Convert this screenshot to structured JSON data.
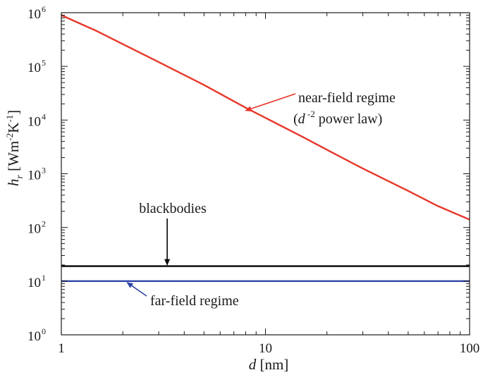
{
  "chart_data": {
    "type": "line",
    "x_scale": "log",
    "y_scale": "log",
    "xlim": [
      1,
      100
    ],
    "ylim": [
      1,
      1000000
    ],
    "x_ticks": [
      {
        "value": 1,
        "label": "1"
      },
      {
        "value": 10,
        "label": "10"
      },
      {
        "value": 100,
        "label": "100"
      }
    ],
    "y_ticks": [
      {
        "value": 1,
        "base": "10",
        "exp": "0"
      },
      {
        "value": 10,
        "base": "10",
        "exp": "1"
      },
      {
        "value": 100,
        "base": "10",
        "exp": "2"
      },
      {
        "value": 1000,
        "base": "10",
        "exp": "3"
      },
      {
        "value": 10000,
        "base": "10",
        "exp": "4"
      },
      {
        "value": 100000,
        "base": "10",
        "exp": "5"
      },
      {
        "value": 1000000,
        "base": "10",
        "exp": "6"
      }
    ],
    "xlabel": {
      "var": "d",
      "unit": " [nm]"
    },
    "ylabel": {
      "var": "h",
      "sub": "r",
      "open": " [Wm",
      "exp1": "-2",
      "mid": "K",
      "exp2": "-1",
      "close": "]"
    },
    "grid": false,
    "series": [
      {
        "color": "#e8352a",
        "x": [
          1,
          1.5,
          2,
          3,
          5,
          8,
          10,
          15,
          20,
          30,
          50,
          70,
          100
        ],
        "y": [
          900000,
          450000,
          260000,
          120000,
          45000,
          17000,
          11000,
          5000,
          2800,
          1250,
          480,
          250,
          140
        ]
      },
      {
        "color": "#000000",
        "x": [
          1,
          100
        ],
        "y": [
          19,
          19
        ]
      },
      {
        "color": "#2f44a8",
        "x": [
          1,
          100
        ],
        "y": [
          10,
          10
        ]
      }
    ],
    "annotations": [
      {
        "key": "near",
        "line1": "near-field regime",
        "line2_open": "(",
        "line2_var": "d",
        "line2_exp": " -2",
        "line2_rest": " power law)",
        "target": [
          8,
          15000
        ],
        "arrow_color": "#e8352a"
      },
      {
        "key": "bb",
        "text": "blackbodies",
        "target": [
          3.3,
          19
        ],
        "arrow_color": "#000000"
      },
      {
        "key": "far",
        "text": "far-field regime",
        "target": [
          2.1,
          10
        ],
        "arrow_color": "#2f44a8"
      }
    ]
  }
}
